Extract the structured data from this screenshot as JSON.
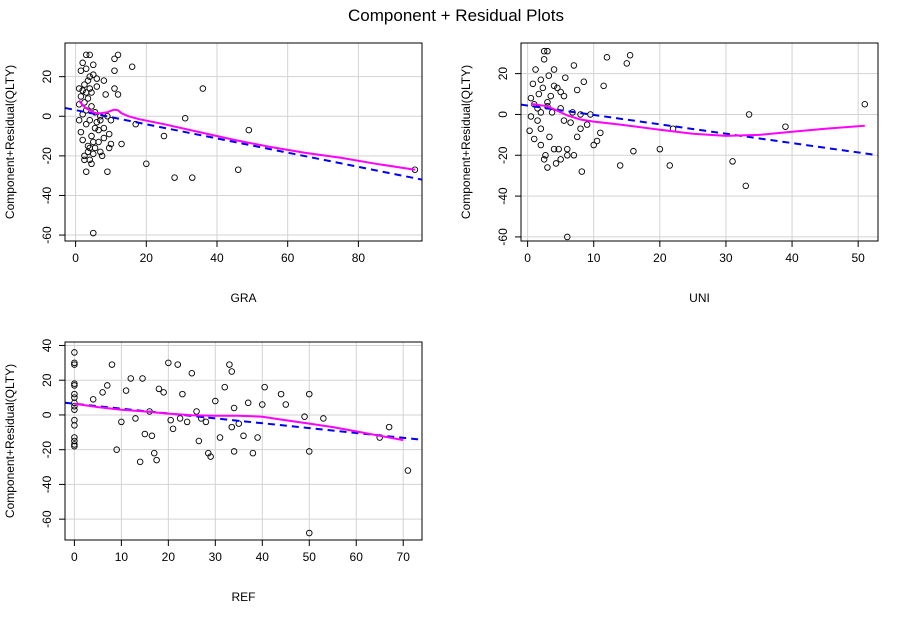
{
  "title": "Component + Residual Plots",
  "colors": {
    "points": "#000000",
    "fit_line": "#0000ee",
    "smooth_line": "#ff00ff",
    "grid": "#d3d3d3"
  },
  "chart_data": [
    {
      "type": "scatter",
      "xlabel": "GRA",
      "ylabel": "Component+Residual(QLTY)",
      "xlim": [
        -3,
        98
      ],
      "ylim": [
        -63,
        37
      ],
      "xticks": [
        0,
        20,
        40,
        60,
        80
      ],
      "yticks": [
        -60,
        -40,
        -20,
        0,
        20
      ],
      "fit_line": [
        [
          -3,
          4.2
        ],
        [
          98,
          -32.0
        ]
      ],
      "smooth": [
        [
          1,
          8
        ],
        [
          2,
          5.5
        ],
        [
          3,
          4
        ],
        [
          4,
          3
        ],
        [
          5,
          2
        ],
        [
          6,
          1.5
        ],
        [
          7,
          1.5
        ],
        [
          8,
          1.8
        ],
        [
          9,
          2
        ],
        [
          10,
          2.8
        ],
        [
          11,
          3.3
        ],
        [
          12,
          3
        ],
        [
          13,
          1.5
        ],
        [
          15,
          0
        ],
        [
          18,
          -1.5
        ],
        [
          25,
          -4
        ],
        [
          35,
          -8
        ],
        [
          45,
          -12
        ],
        [
          55,
          -15.5
        ],
        [
          65,
          -18.5
        ],
        [
          75,
          -21
        ],
        [
          85,
          -24
        ],
        [
          96,
          -27
        ]
      ],
      "points": [
        [
          1,
          14
        ],
        [
          1,
          6
        ],
        [
          1,
          -2
        ],
        [
          1.5,
          -8
        ],
        [
          1.5,
          10
        ],
        [
          1.5,
          23
        ],
        [
          2,
          1
        ],
        [
          2,
          13
        ],
        [
          2,
          -12
        ],
        [
          2,
          27
        ],
        [
          2.5,
          -20
        ],
        [
          2.5,
          7
        ],
        [
          2.5,
          16
        ],
        [
          2.5,
          -22
        ],
        [
          3,
          31
        ],
        [
          3,
          -28
        ],
        [
          3,
          3
        ],
        [
          3,
          24
        ],
        [
          3,
          12
        ],
        [
          3,
          -4
        ],
        [
          3.5,
          -15
        ],
        [
          3.5,
          18
        ],
        [
          3.5,
          9
        ],
        [
          3.5,
          -18
        ],
        [
          4,
          -16
        ],
        [
          4,
          20
        ],
        [
          4,
          31
        ],
        [
          4,
          14
        ],
        [
          4,
          -2
        ],
        [
          4,
          -22
        ],
        [
          4.5,
          5
        ],
        [
          4.5,
          -10
        ],
        [
          4.5,
          12
        ],
        [
          4.5,
          -24
        ],
        [
          5,
          -13
        ],
        [
          5,
          -19
        ],
        [
          5,
          26
        ],
        [
          5,
          21
        ],
        [
          5,
          -59
        ],
        [
          5.5,
          -6
        ],
        [
          5.5,
          -16
        ],
        [
          5.5,
          2
        ],
        [
          6,
          -3
        ],
        [
          6,
          15
        ],
        [
          6,
          19
        ],
        [
          6.5,
          -7
        ],
        [
          6.5,
          -13
        ],
        [
          7,
          0
        ],
        [
          7,
          -2
        ],
        [
          7,
          -18
        ],
        [
          7.5,
          -20
        ],
        [
          8,
          18
        ],
        [
          8,
          -11
        ],
        [
          8,
          -6
        ],
        [
          8.5,
          11
        ],
        [
          9,
          -28
        ],
        [
          9,
          0
        ],
        [
          9.5,
          -9
        ],
        [
          9.5,
          -16
        ],
        [
          10,
          -2
        ],
        [
          10,
          -14
        ],
        [
          11,
          14
        ],
        [
          11,
          23
        ],
        [
          11,
          29
        ],
        [
          12,
          11
        ],
        [
          12,
          31
        ],
        [
          13,
          -14
        ],
        [
          16,
          25
        ],
        [
          17,
          -4
        ],
        [
          20,
          -24
        ],
        [
          25,
          -10
        ],
        [
          28,
          -31
        ],
        [
          31,
          -1
        ],
        [
          33,
          -31
        ],
        [
          36,
          14
        ],
        [
          46,
          -27
        ],
        [
          49,
          -7
        ],
        [
          96,
          -27
        ]
      ]
    },
    {
      "type": "scatter",
      "xlabel": "UNI",
      "ylabel": "Component+Residual(QLTY)",
      "xlim": [
        -1,
        53
      ],
      "ylim": [
        -62,
        35
      ],
      "xticks": [
        0,
        10,
        20,
        30,
        40,
        50
      ],
      "yticks": [
        -60,
        -40,
        -20,
        0,
        20
      ],
      "fit_line": [
        [
          -1,
          4.8
        ],
        [
          53,
          -20.0
        ]
      ],
      "smooth": [
        [
          0.5,
          5
        ],
        [
          1,
          5
        ],
        [
          2,
          4.5
        ],
        [
          3,
          4
        ],
        [
          4,
          2.5
        ],
        [
          5,
          1
        ],
        [
          6,
          -0.5
        ],
        [
          8,
          -2.5
        ],
        [
          10,
          -3.5
        ],
        [
          14,
          -5
        ],
        [
          20,
          -7.5
        ],
        [
          25,
          -9.5
        ],
        [
          30,
          -10.5
        ],
        [
          35,
          -10
        ],
        [
          40,
          -8.5
        ],
        [
          45,
          -7
        ],
        [
          51,
          -5.5
        ]
      ],
      "points": [
        [
          0.3,
          -8
        ],
        [
          0.5,
          8
        ],
        [
          0.5,
          -1
        ],
        [
          0.8,
          15
        ],
        [
          1,
          5
        ],
        [
          1,
          -12
        ],
        [
          1.2,
          22
        ],
        [
          1.5,
          3
        ],
        [
          1.5,
          -3
        ],
        [
          1.7,
          10
        ],
        [
          2,
          -7
        ],
        [
          2,
          17
        ],
        [
          2,
          1
        ],
        [
          2,
          -15
        ],
        [
          2.3,
          13
        ],
        [
          2.5,
          -22
        ],
        [
          2.5,
          27
        ],
        [
          2.5,
          31
        ],
        [
          2.7,
          -20
        ],
        [
          3,
          4
        ],
        [
          3,
          -26
        ],
        [
          3,
          6
        ],
        [
          3,
          31
        ],
        [
          3.2,
          19
        ],
        [
          3.3,
          -11
        ],
        [
          3.5,
          9
        ],
        [
          3.7,
          1
        ],
        [
          4,
          22
        ],
        [
          4,
          -17
        ],
        [
          4,
          14
        ],
        [
          4.3,
          -24
        ],
        [
          4.5,
          13
        ],
        [
          4.7,
          -17
        ],
        [
          5,
          3
        ],
        [
          5,
          11
        ],
        [
          5,
          -22
        ],
        [
          5.5,
          -3
        ],
        [
          5.5,
          9
        ],
        [
          5.7,
          18
        ],
        [
          6,
          -20
        ],
        [
          6,
          -17
        ],
        [
          6,
          -60
        ],
        [
          6.5,
          -4
        ],
        [
          6.8,
          1
        ],
        [
          7,
          -20
        ],
        [
          7,
          24
        ],
        [
          7.5,
          12
        ],
        [
          7.5,
          -11
        ],
        [
          8,
          0
        ],
        [
          8,
          -7
        ],
        [
          8.2,
          -28
        ],
        [
          8.5,
          16
        ],
        [
          9,
          -5
        ],
        [
          9.5,
          0
        ],
        [
          10,
          -15
        ],
        [
          10.5,
          -13
        ],
        [
          11,
          -9
        ],
        [
          11.5,
          14
        ],
        [
          12,
          28
        ],
        [
          14,
          -25
        ],
        [
          15,
          25
        ],
        [
          15.5,
          29
        ],
        [
          16,
          -18
        ],
        [
          20,
          -17
        ],
        [
          21.5,
          -25
        ],
        [
          22,
          -7
        ],
        [
          31,
          -23
        ],
        [
          33,
          -35
        ],
        [
          33.5,
          0
        ],
        [
          39,
          -6
        ],
        [
          51,
          5
        ]
      ]
    },
    {
      "type": "scatter",
      "xlabel": "REF",
      "ylabel": "Component+Residual(QLTY)",
      "xlim": [
        -2,
        74
      ],
      "ylim": [
        -72,
        42
      ],
      "xticks": [
        0,
        10,
        20,
        30,
        40,
        50,
        60,
        70
      ],
      "yticks": [
        -60,
        -40,
        -20,
        0,
        20,
        40
      ],
      "fit_line": [
        [
          -2,
          7.0
        ],
        [
          74,
          -14.3
        ]
      ],
      "smooth": [
        [
          0,
          6.5
        ],
        [
          5,
          4.5
        ],
        [
          10,
          3
        ],
        [
          15,
          2
        ],
        [
          20,
          0.8
        ],
        [
          25,
          -0.2
        ],
        [
          30,
          -0.5
        ],
        [
          35,
          -0.5
        ],
        [
          40,
          -1
        ],
        [
          45,
          -3
        ],
        [
          50,
          -5
        ],
        [
          55,
          -7
        ],
        [
          60,
          -9.5
        ],
        [
          65,
          -12
        ],
        [
          70,
          -14.5
        ]
      ],
      "points": [
        [
          0,
          36
        ],
        [
          0,
          30
        ],
        [
          0,
          29
        ],
        [
          0,
          18
        ],
        [
          0,
          17
        ],
        [
          0,
          12
        ],
        [
          0,
          10
        ],
        [
          0,
          7
        ],
        [
          0,
          5
        ],
        [
          0,
          3
        ],
        [
          0,
          -3
        ],
        [
          0,
          -6
        ],
        [
          0,
          -13
        ],
        [
          0,
          -15
        ],
        [
          0,
          -17
        ],
        [
          0,
          -18
        ],
        [
          4,
          9
        ],
        [
          6,
          13
        ],
        [
          7,
          17
        ],
        [
          8,
          29
        ],
        [
          9,
          -20
        ],
        [
          10,
          -4
        ],
        [
          11,
          14
        ],
        [
          12,
          21
        ],
        [
          13,
          -2
        ],
        [
          14,
          -27
        ],
        [
          14.5,
          21
        ],
        [
          15,
          -11
        ],
        [
          16,
          2
        ],
        [
          16.5,
          -12
        ],
        [
          17,
          -22
        ],
        [
          17.5,
          -26
        ],
        [
          18,
          15
        ],
        [
          19,
          13
        ],
        [
          20,
          30
        ],
        [
          20.5,
          -3
        ],
        [
          21,
          -8
        ],
        [
          22,
          29
        ],
        [
          22.5,
          -2
        ],
        [
          23,
          12
        ],
        [
          24,
          -4
        ],
        [
          25,
          24
        ],
        [
          26,
          2
        ],
        [
          26.5,
          -15
        ],
        [
          27,
          -2
        ],
        [
          28,
          -4
        ],
        [
          28.5,
          -22
        ],
        [
          29,
          -24
        ],
        [
          30,
          8
        ],
        [
          31,
          -13
        ],
        [
          32,
          16
        ],
        [
          33,
          29
        ],
        [
          33.5,
          25
        ],
        [
          33.5,
          -7
        ],
        [
          34,
          4
        ],
        [
          34,
          -21
        ],
        [
          35,
          -5
        ],
        [
          36,
          -12
        ],
        [
          37,
          7
        ],
        [
          38,
          -22
        ],
        [
          39,
          -13
        ],
        [
          40,
          6
        ],
        [
          40.5,
          16
        ],
        [
          44,
          12
        ],
        [
          45,
          6
        ],
        [
          49,
          -1
        ],
        [
          50,
          12
        ],
        [
          50,
          -21
        ],
        [
          50,
          -68
        ],
        [
          53,
          -2
        ],
        [
          65,
          -13
        ],
        [
          67,
          -7
        ],
        [
          71,
          -32
        ]
      ]
    }
  ]
}
